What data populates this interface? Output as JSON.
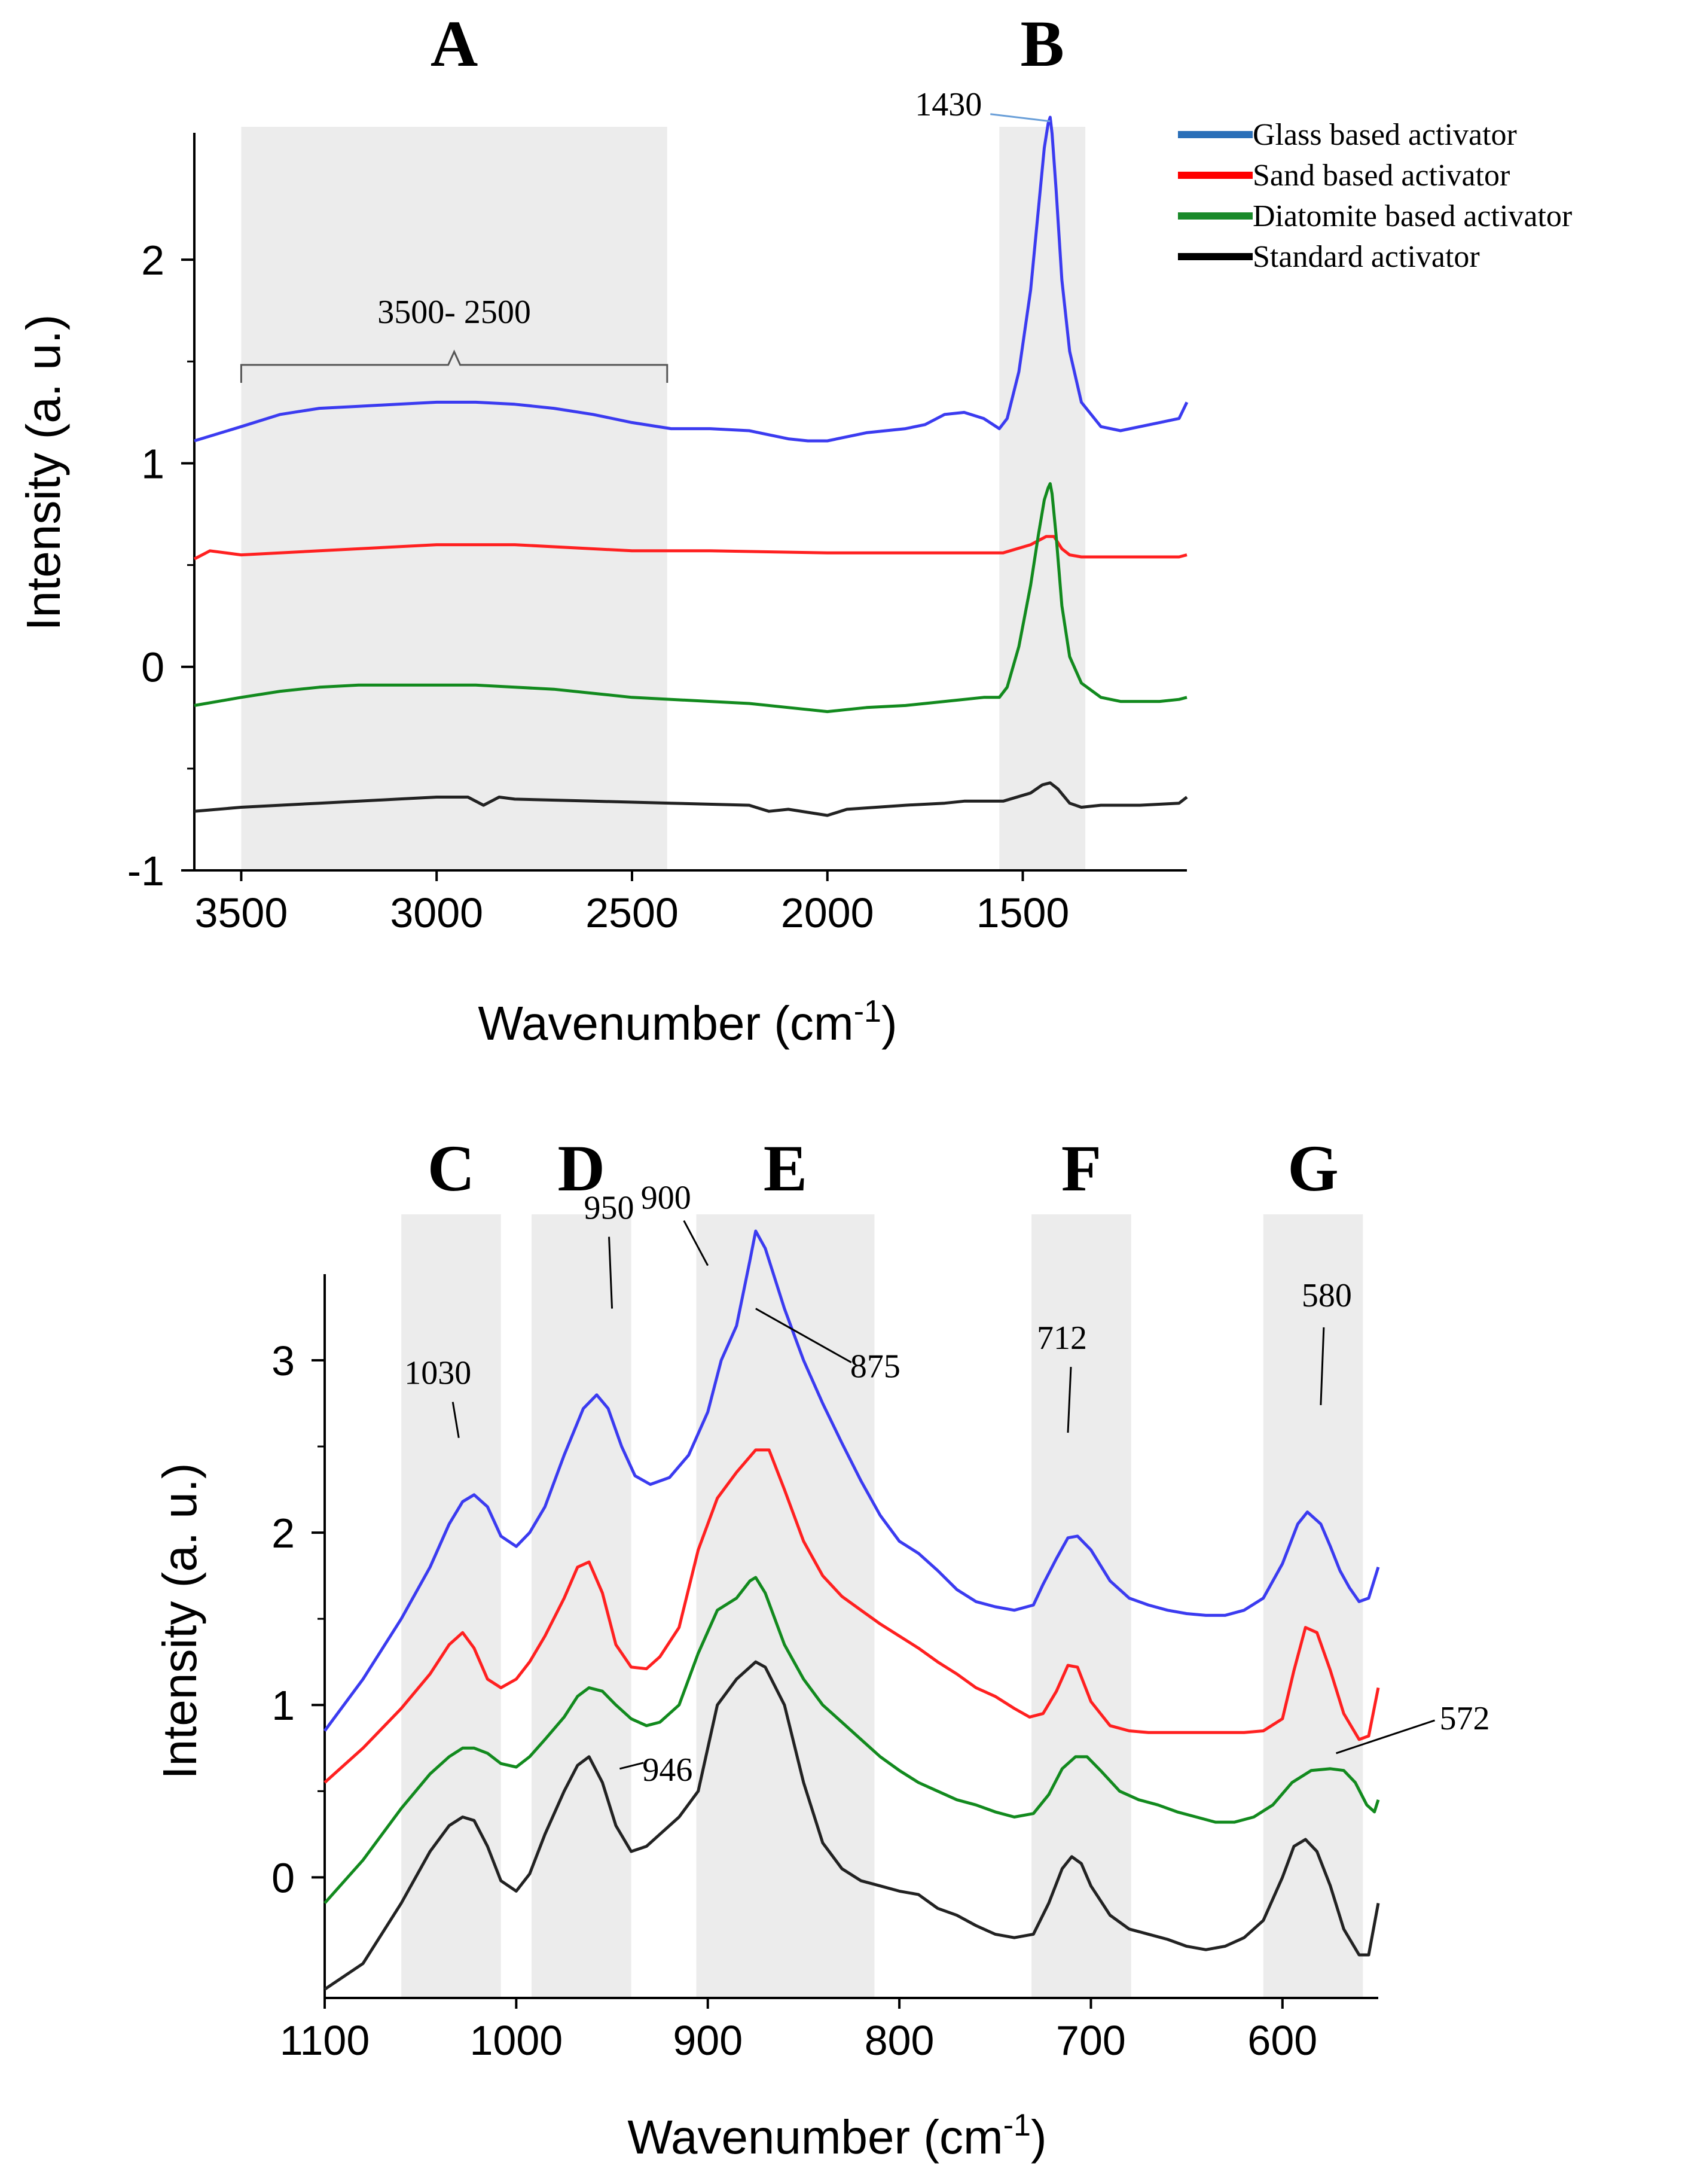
{
  "chart_data": [
    {
      "type": "line",
      "panel": "top",
      "xlabel": "Wavenumber (cm",
      "xlabel_sup": "-1",
      "xlabel_end": ")",
      "ylabel": "Intensity (a. u.)",
      "xlim": [
        3620,
        1080
      ],
      "ylim": [
        -1,
        2.6
      ],
      "xticks": [
        3500,
        3000,
        2500,
        2000,
        1500
      ],
      "xtick_labels": [
        "3500",
        "3000",
        "2500",
        "2000",
        "1500"
      ],
      "yticks": [
        -1,
        0,
        1,
        2
      ],
      "ytick_labels": [
        "-1",
        "0",
        "1",
        "2"
      ],
      "regions": [
        {
          "label": "A",
          "x0": 3500,
          "x1": 2410
        },
        {
          "label": "B",
          "x0": 1560,
          "x1": 1340
        }
      ],
      "bracket": {
        "label": "3500- 2500",
        "x0": 3500,
        "x1": 2410,
        "y": 1.55
      },
      "annotations": [
        {
          "text": "1430",
          "x": 1430,
          "y": 2.68
        }
      ],
      "legend": {
        "position": "top-right",
        "entries": [
          {
            "label": "Glass based activator",
            "color": "#2a6fb8"
          },
          {
            "label": "Sand based activator",
            "color": "#ff0000"
          },
          {
            "label": "Diatomite  based activator",
            "color": "#1a8a2a"
          },
          {
            "label": "Standard activator",
            "color": "#000000"
          }
        ]
      },
      "series": [
        {
          "name": "Glass based activator",
          "color": "#3b3bf0",
          "x": [
            3620,
            3500,
            3400,
            3300,
            3200,
            3100,
            3000,
            2900,
            2800,
            2700,
            2600,
            2500,
            2400,
            2300,
            2200,
            2100,
            2050,
            2000,
            1950,
            1900,
            1800,
            1750,
            1700,
            1650,
            1600,
            1560,
            1540,
            1510,
            1480,
            1460,
            1445,
            1435,
            1430,
            1425,
            1415,
            1400,
            1380,
            1350,
            1300,
            1250,
            1200,
            1150,
            1100,
            1080
          ],
          "values": [
            1.11,
            1.18,
            1.24,
            1.27,
            1.28,
            1.29,
            1.3,
            1.3,
            1.29,
            1.27,
            1.24,
            1.2,
            1.17,
            1.17,
            1.16,
            1.12,
            1.11,
            1.11,
            1.13,
            1.15,
            1.17,
            1.19,
            1.24,
            1.25,
            1.22,
            1.17,
            1.22,
            1.45,
            1.85,
            2.25,
            2.55,
            2.67,
            2.7,
            2.62,
            2.35,
            1.9,
            1.55,
            1.3,
            1.18,
            1.16,
            1.18,
            1.2,
            1.22,
            1.3
          ]
        },
        {
          "name": "Sand based activator",
          "color": "#ff2020",
          "x": [
            3620,
            3600,
            3580,
            3500,
            3300,
            3000,
            2800,
            2500,
            2300,
            2000,
            1700,
            1550,
            1480,
            1440,
            1420,
            1400,
            1380,
            1350,
            1250,
            1100,
            1080
          ],
          "values": [
            0.53,
            0.55,
            0.57,
            0.55,
            0.57,
            0.6,
            0.6,
            0.57,
            0.57,
            0.56,
            0.56,
            0.56,
            0.6,
            0.64,
            0.64,
            0.58,
            0.55,
            0.54,
            0.54,
            0.54,
            0.55
          ]
        },
        {
          "name": "Diatomite  based activator",
          "color": "#128a1e",
          "x": [
            3620,
            3500,
            3400,
            3300,
            3200,
            3100,
            3000,
            2900,
            2800,
            2700,
            2600,
            2500,
            2400,
            2300,
            2200,
            2100,
            2050,
            2000,
            1950,
            1900,
            1800,
            1700,
            1600,
            1560,
            1540,
            1510,
            1480,
            1460,
            1445,
            1435,
            1430,
            1425,
            1415,
            1400,
            1380,
            1350,
            1300,
            1250,
            1200,
            1150,
            1100,
            1080
          ],
          "values": [
            -0.19,
            -0.15,
            -0.12,
            -0.1,
            -0.09,
            -0.09,
            -0.09,
            -0.09,
            -0.1,
            -0.11,
            -0.13,
            -0.15,
            -0.16,
            -0.17,
            -0.18,
            -0.2,
            -0.21,
            -0.22,
            -0.21,
            -0.2,
            -0.19,
            -0.17,
            -0.15,
            -0.15,
            -0.1,
            0.1,
            0.4,
            0.65,
            0.82,
            0.88,
            0.9,
            0.85,
            0.65,
            0.3,
            0.05,
            -0.08,
            -0.15,
            -0.17,
            -0.17,
            -0.17,
            -0.16,
            -0.15
          ]
        },
        {
          "name": "Standard activator",
          "color": "#222222",
          "x": [
            3620,
            3500,
            3300,
            3100,
            3000,
            2920,
            2880,
            2860,
            2840,
            2800,
            2600,
            2400,
            2200,
            2150,
            2100,
            2000,
            1950,
            1800,
            1700,
            1650,
            1550,
            1480,
            1450,
            1430,
            1410,
            1380,
            1350,
            1300,
            1200,
            1100,
            1080
          ],
          "values": [
            -0.71,
            -0.69,
            -0.67,
            -0.65,
            -0.64,
            -0.64,
            -0.68,
            -0.66,
            -0.64,
            -0.65,
            -0.66,
            -0.67,
            -0.68,
            -0.71,
            -0.7,
            -0.73,
            -0.7,
            -0.68,
            -0.67,
            -0.66,
            -0.66,
            -0.62,
            -0.58,
            -0.57,
            -0.6,
            -0.67,
            -0.69,
            -0.68,
            -0.68,
            -0.67,
            -0.64
          ]
        }
      ]
    },
    {
      "type": "line",
      "panel": "bottom",
      "xlabel": "Wavenumber (cm",
      "xlabel_sup": "-1",
      "xlabel_end": ")",
      "ylabel": "Intensity (a. u.)",
      "xlim": [
        1100,
        550
      ],
      "ylim": [
        -0.7,
        3.5
      ],
      "xticks": [
        1100,
        1000,
        900,
        800,
        700,
        600
      ],
      "xtick_labels": [
        "1100",
        "1000",
        "900",
        "800",
        "700",
        "600"
      ],
      "yticks": [
        0,
        1,
        2,
        3
      ],
      "ytick_labels": [
        "0",
        "1",
        "2",
        "3"
      ],
      "regions": [
        {
          "label": "C",
          "x0": 1060,
          "x1": 1008
        },
        {
          "label": "D",
          "x0": 992,
          "x1": 940
        },
        {
          "label": "E",
          "x0": 906,
          "x1": 813
        },
        {
          "label": "F",
          "x0": 731,
          "x1": 679
        },
        {
          "label": "G",
          "x0": 610,
          "x1": 558
        }
      ],
      "annotations": [
        {
          "text": "1030",
          "x": 1030,
          "y": 2.55
        },
        {
          "text": "950",
          "x": 950,
          "y": 3.3
        },
        {
          "text": "900",
          "x": 900,
          "y": 3.55
        },
        {
          "text": "875",
          "x": 875,
          "y": 3.3
        },
        {
          "text": "946",
          "x": 946,
          "y": 0.63
        },
        {
          "text": "712",
          "x": 712,
          "y": 2.58
        },
        {
          "text": "580",
          "x": 580,
          "y": 2.74
        },
        {
          "text": "572",
          "x": 572,
          "y": 0.72
        }
      ],
      "series": [
        {
          "name": "Glass based activator",
          "color": "#3b3bf0",
          "x": [
            1100,
            1080,
            1060,
            1045,
            1035,
            1028,
            1022,
            1015,
            1008,
            1000,
            993,
            985,
            975,
            965,
            958,
            952,
            945,
            938,
            930,
            920,
            910,
            900,
            893,
            885,
            878,
            875,
            870,
            860,
            850,
            840,
            830,
            820,
            810,
            800,
            790,
            780,
            770,
            760,
            750,
            740,
            730,
            725,
            718,
            712,
            707,
            700,
            690,
            680,
            670,
            660,
            650,
            640,
            630,
            620,
            610,
            600,
            592,
            587,
            580,
            575,
            570,
            565,
            560,
            555,
            550
          ],
          "values": [
            0.85,
            1.15,
            1.5,
            1.8,
            2.05,
            2.18,
            2.22,
            2.15,
            1.98,
            1.92,
            2.0,
            2.15,
            2.45,
            2.72,
            2.8,
            2.72,
            2.5,
            2.33,
            2.28,
            2.32,
            2.45,
            2.7,
            3.0,
            3.2,
            3.58,
            3.75,
            3.65,
            3.3,
            3.0,
            2.75,
            2.52,
            2.3,
            2.1,
            1.95,
            1.88,
            1.78,
            1.67,
            1.6,
            1.57,
            1.55,
            1.58,
            1.7,
            1.85,
            1.97,
            1.98,
            1.9,
            1.72,
            1.62,
            1.58,
            1.55,
            1.53,
            1.52,
            1.52,
            1.55,
            1.62,
            1.82,
            2.05,
            2.12,
            2.05,
            1.92,
            1.78,
            1.68,
            1.6,
            1.62,
            1.8
          ]
        },
        {
          "name": "Sand based activator",
          "color": "#ff2020",
          "x": [
            1100,
            1080,
            1060,
            1045,
            1035,
            1028,
            1022,
            1015,
            1008,
            1000,
            993,
            985,
            975,
            968,
            962,
            955,
            948,
            940,
            932,
            925,
            915,
            905,
            895,
            885,
            875,
            868,
            860,
            850,
            840,
            830,
            820,
            810,
            800,
            790,
            780,
            770,
            760,
            750,
            740,
            732,
            725,
            718,
            712,
            707,
            700,
            690,
            680,
            670,
            660,
            650,
            640,
            630,
            620,
            610,
            600,
            594,
            588,
            582,
            575,
            568,
            560,
            555,
            550
          ],
          "values": [
            0.55,
            0.75,
            0.98,
            1.18,
            1.35,
            1.42,
            1.33,
            1.15,
            1.1,
            1.15,
            1.25,
            1.4,
            1.62,
            1.8,
            1.83,
            1.65,
            1.35,
            1.22,
            1.21,
            1.28,
            1.45,
            1.9,
            2.2,
            2.35,
            2.48,
            2.48,
            2.25,
            1.95,
            1.75,
            1.63,
            1.55,
            1.47,
            1.4,
            1.33,
            1.25,
            1.18,
            1.1,
            1.05,
            0.98,
            0.93,
            0.95,
            1.08,
            1.23,
            1.22,
            1.02,
            0.88,
            0.85,
            0.84,
            0.84,
            0.84,
            0.84,
            0.84,
            0.84,
            0.85,
            0.92,
            1.2,
            1.45,
            1.42,
            1.2,
            0.95,
            0.8,
            0.82,
            1.1
          ]
        },
        {
          "name": "Diatomite  based activator",
          "color": "#128a1e",
          "x": [
            1100,
            1080,
            1060,
            1045,
            1035,
            1028,
            1022,
            1015,
            1008,
            1000,
            993,
            985,
            975,
            968,
            962,
            955,
            948,
            940,
            932,
            925,
            915,
            905,
            895,
            885,
            878,
            875,
            870,
            860,
            850,
            840,
            830,
            820,
            810,
            800,
            790,
            780,
            770,
            760,
            750,
            740,
            730,
            722,
            715,
            708,
            702,
            695,
            685,
            675,
            665,
            655,
            645,
            635,
            625,
            615,
            605,
            595,
            585,
            575,
            568,
            562,
            556,
            552,
            550
          ],
          "values": [
            -0.15,
            0.1,
            0.4,
            0.6,
            0.7,
            0.75,
            0.75,
            0.72,
            0.66,
            0.64,
            0.7,
            0.8,
            0.93,
            1.05,
            1.1,
            1.08,
            1.0,
            0.92,
            0.88,
            0.9,
            1.0,
            1.3,
            1.55,
            1.62,
            1.72,
            1.74,
            1.65,
            1.35,
            1.15,
            1.0,
            0.9,
            0.8,
            0.7,
            0.62,
            0.55,
            0.5,
            0.45,
            0.42,
            0.38,
            0.35,
            0.37,
            0.48,
            0.63,
            0.7,
            0.7,
            0.62,
            0.5,
            0.45,
            0.42,
            0.38,
            0.35,
            0.32,
            0.32,
            0.35,
            0.42,
            0.55,
            0.62,
            0.63,
            0.62,
            0.55,
            0.42,
            0.38,
            0.45
          ]
        },
        {
          "name": "Standard activator",
          "color": "#222222",
          "x": [
            1100,
            1080,
            1060,
            1045,
            1035,
            1028,
            1022,
            1015,
            1008,
            1000,
            993,
            985,
            975,
            968,
            962,
            955,
            948,
            940,
            932,
            925,
            915,
            905,
            895,
            885,
            878,
            875,
            870,
            860,
            850,
            840,
            830,
            820,
            810,
            800,
            790,
            780,
            770,
            760,
            750,
            740,
            730,
            722,
            715,
            710,
            705,
            700,
            690,
            680,
            670,
            660,
            650,
            640,
            630,
            620,
            610,
            600,
            594,
            588,
            582,
            575,
            568,
            560,
            555,
            550
          ],
          "values": [
            -0.65,
            -0.5,
            -0.15,
            0.15,
            0.3,
            0.35,
            0.33,
            0.18,
            -0.02,
            -0.08,
            0.02,
            0.25,
            0.5,
            0.65,
            0.7,
            0.55,
            0.3,
            0.15,
            0.18,
            0.25,
            0.35,
            0.5,
            1.0,
            1.15,
            1.22,
            1.25,
            1.22,
            1.0,
            0.55,
            0.2,
            0.05,
            -0.02,
            -0.05,
            -0.08,
            -0.1,
            -0.18,
            -0.22,
            -0.28,
            -0.33,
            -0.35,
            -0.33,
            -0.15,
            0.05,
            0.12,
            0.08,
            -0.05,
            -0.22,
            -0.3,
            -0.33,
            -0.36,
            -0.4,
            -0.42,
            -0.4,
            -0.35,
            -0.25,
            0.0,
            0.18,
            0.22,
            0.15,
            -0.05,
            -0.3,
            -0.45,
            -0.45,
            -0.15
          ]
        }
      ]
    }
  ]
}
